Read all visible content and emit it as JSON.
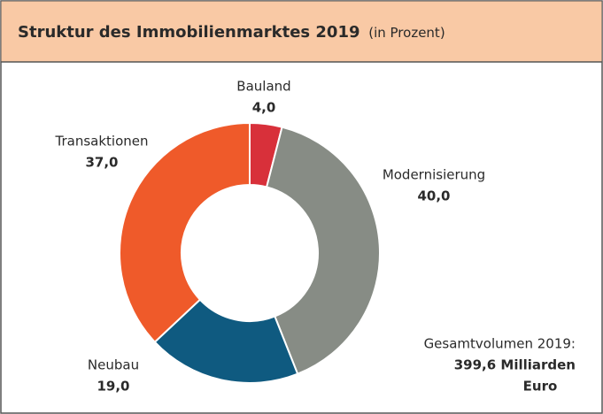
{
  "chart_data": {
    "type": "donut",
    "title": "Struktur des Immobilienmarktes 2019",
    "subtitle": "(in Prozent)",
    "categories": [
      "Bauland",
      "Modernisierung",
      "Neubau",
      "Transaktionen"
    ],
    "values": [
      4.0,
      40.0,
      19.0,
      37.0
    ],
    "value_labels": [
      "4,0",
      "40,0",
      "19,0",
      "37,0"
    ],
    "colors": [
      "#d8303a",
      "#878c85",
      "#0f5a80",
      "#ef5a2a"
    ],
    "annotation": [
      "Gesamtvolumen 2019:",
      "399,6 Milliarden",
      "Euro"
    ]
  }
}
